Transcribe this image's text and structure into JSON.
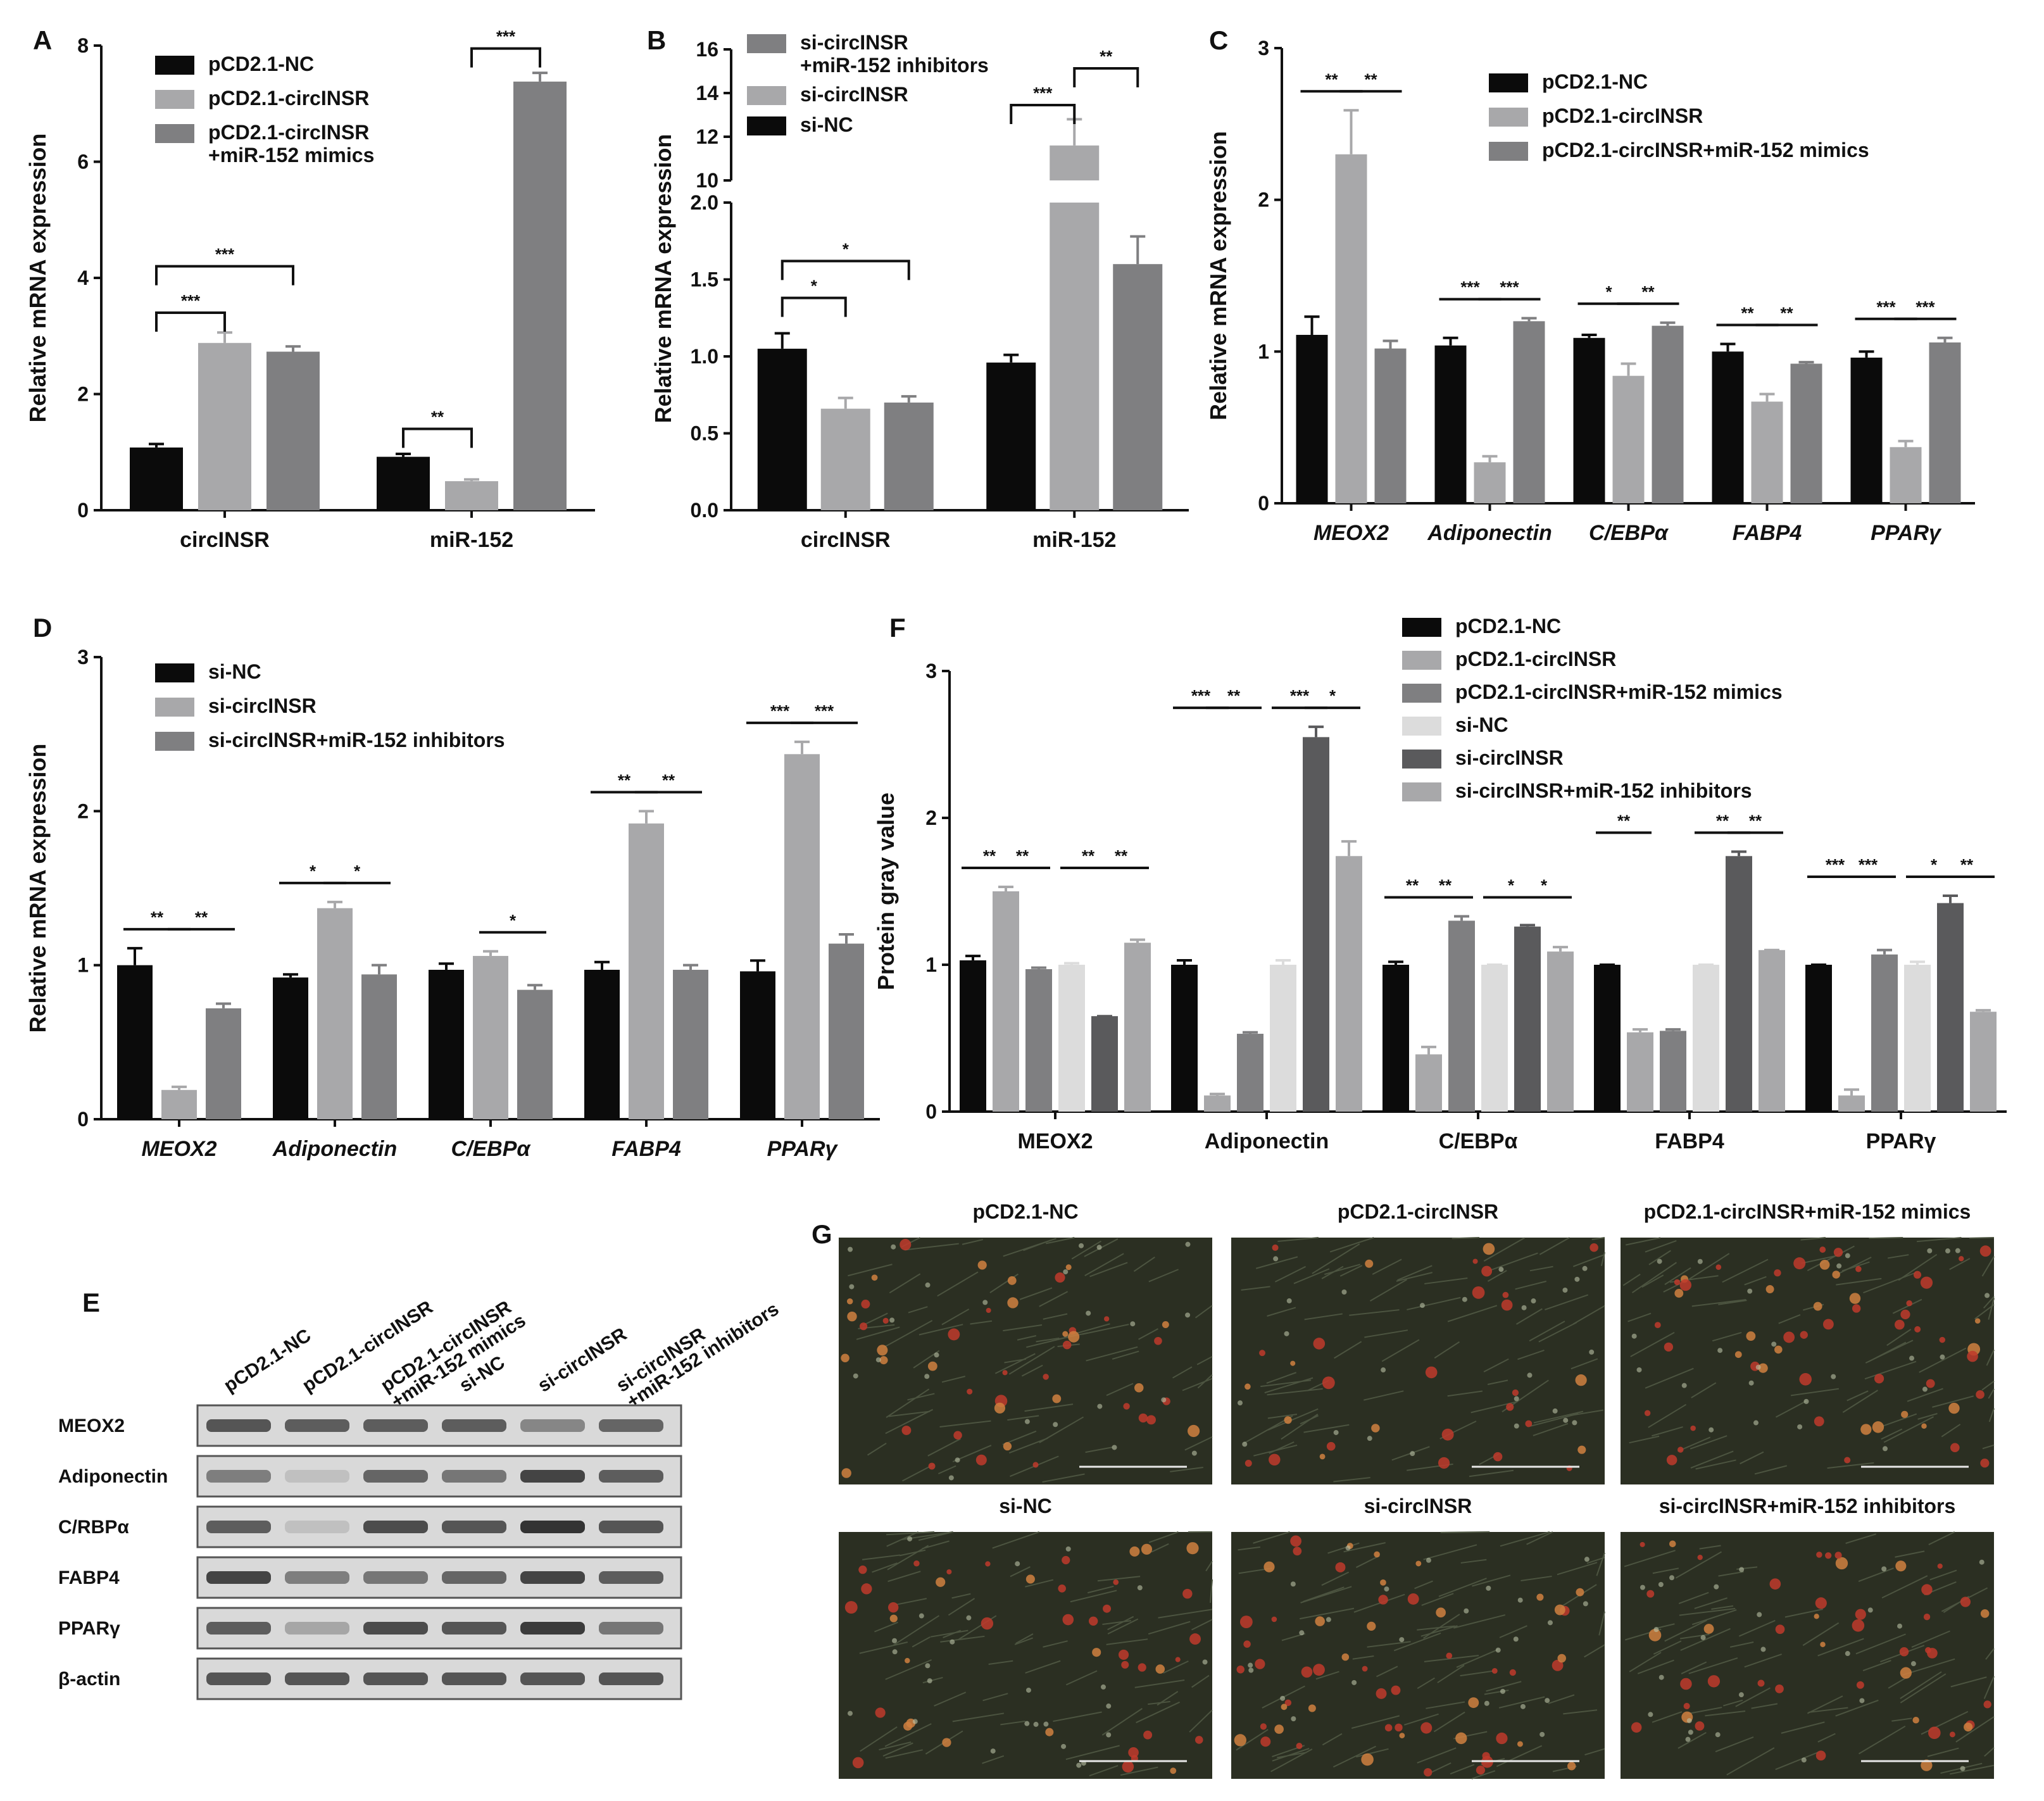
{
  "colors": {
    "black": "#0b0b0b",
    "lightgray": "#a8a8aa",
    "midgray": "#7f7f81",
    "palegray": "#dcdcdc",
    "darkgray": "#5a5a5c",
    "blot_bg": "#d9d9d9",
    "band": "#333333"
  },
  "chart_data": [
    {
      "panel": "A",
      "type": "bar",
      "categories": [
        "circINSR",
        "miR-152"
      ],
      "ylabel": "Relative mRNA expression",
      "ylim": [
        0,
        8
      ],
      "yticks": [
        0,
        2,
        4,
        6,
        8
      ],
      "series": [
        {
          "name": "pCD2.1-NC",
          "values": [
            1.08,
            0.92
          ],
          "errors": [
            0.06,
            0.05
          ]
        },
        {
          "name": "pCD2.1-circINSR",
          "values": [
            2.88,
            0.5
          ],
          "errors": [
            0.18,
            0.03
          ]
        },
        {
          "name": "pCD2.1-circINSR\n+miR-152 mimics",
          "values": [
            2.73,
            7.38
          ],
          "errors": [
            0.09,
            0.15
          ]
        }
      ],
      "significance": [
        {
          "cat": 0,
          "from": 0,
          "to": 1,
          "label": "***"
        },
        {
          "cat": 0,
          "from": 0,
          "to": 2,
          "label": "***"
        },
        {
          "cat": 1,
          "from": 0,
          "to": 1,
          "label": "**"
        },
        {
          "cat": 1,
          "from": 1,
          "to": 2,
          "label": "***"
        }
      ],
      "legend": "top-left"
    },
    {
      "panel": "B",
      "type": "bar",
      "categories": [
        "circINSR",
        "miR-152"
      ],
      "ylabel": "Relative mRNA expression",
      "broken_axis": true,
      "yticks_low": [
        "0.0",
        "0.5",
        "1.0",
        "1.5",
        "2.0"
      ],
      "yticks_high": [
        "10",
        "12",
        "14",
        "16"
      ],
      "series": [
        {
          "name": "si-NC",
          "values": [
            1.05,
            0.96
          ],
          "errors": [
            0.1,
            0.05
          ]
        },
        {
          "name": "si-circINSR",
          "values": [
            0.66,
            11.6
          ],
          "errors": [
            0.07,
            1.2
          ]
        },
        {
          "name": "si-circINSR\n+miR-152 inhibitors",
          "values": [
            0.7,
            1.6
          ],
          "errors": [
            0.04,
            0.18
          ]
        }
      ],
      "significance": [
        {
          "cat": 0,
          "from": 0,
          "to": 1,
          "label": "*"
        },
        {
          "cat": 0,
          "from": 0,
          "to": 2,
          "label": "*"
        },
        {
          "cat": 1,
          "from": 0,
          "to": 1,
          "label": "***"
        },
        {
          "cat": 1,
          "from": 1,
          "to": 2,
          "label": "**"
        }
      ],
      "legend": "top-left"
    },
    {
      "panel": "C",
      "type": "bar",
      "categories": [
        "MEOX2",
        "Adiponectin",
        "C/EBPα",
        "FABP4",
        "PPARγ"
      ],
      "ylabel": "Relative mRNA expression",
      "ylim": [
        0,
        3
      ],
      "yticks": [
        0,
        1,
        2,
        3
      ],
      "series": [
        {
          "name": "pCD2.1-NC",
          "values": [
            1.11,
            1.04,
            1.09,
            1.0,
            0.96
          ],
          "errors": [
            0.12,
            0.05,
            0.02,
            0.05,
            0.04
          ]
        },
        {
          "name": "pCD2.1-circINSR",
          "values": [
            2.3,
            0.27,
            0.84,
            0.67,
            0.37
          ],
          "errors": [
            0.29,
            0.04,
            0.08,
            0.05,
            0.04
          ]
        },
        {
          "name": "pCD2.1-circINSR+miR-152 mimics",
          "values": [
            1.02,
            1.2,
            1.17,
            0.92,
            1.06
          ],
          "errors": [
            0.05,
            0.02,
            0.02,
            0.01,
            0.03
          ]
        }
      ],
      "significance_labels": [
        [
          "**",
          "**"
        ],
        [
          "***",
          "***"
        ],
        [
          "*",
          "**"
        ],
        [
          "**",
          "**"
        ],
        [
          "***",
          "***"
        ]
      ],
      "legend": "top-right"
    },
    {
      "panel": "D",
      "type": "bar",
      "categories": [
        "MEOX2",
        "Adiponectin",
        "C/EBPα",
        "FABP4",
        "PPARγ"
      ],
      "ylabel": "Relative mRNA expression",
      "ylim": [
        0,
        3
      ],
      "yticks": [
        0,
        1,
        2,
        3
      ],
      "series": [
        {
          "name": "si-NC",
          "values": [
            1.0,
            0.92,
            0.97,
            0.97,
            0.96
          ],
          "errors": [
            0.11,
            0.02,
            0.04,
            0.05,
            0.07
          ]
        },
        {
          "name": "si-circINSR",
          "values": [
            0.19,
            1.37,
            1.06,
            1.92,
            2.37
          ],
          "errors": [
            0.02,
            0.04,
            0.03,
            0.08,
            0.08
          ]
        },
        {
          "name": "si-circINSR+miR-152 inhibitors",
          "values": [
            0.72,
            0.94,
            0.84,
            0.97,
            1.14
          ],
          "errors": [
            0.03,
            0.06,
            0.03,
            0.03,
            0.06
          ]
        }
      ],
      "significance_labels": [
        [
          "**",
          "**"
        ],
        [
          "*",
          "*"
        ],
        [
          "",
          "*"
        ],
        [
          "**",
          "**"
        ],
        [
          "***",
          "***"
        ]
      ],
      "legend": "top-left"
    },
    {
      "panel": "F",
      "type": "bar",
      "categories": [
        "MEOX2",
        "Adiponectin",
        "C/EBPα",
        "FABP4",
        "PPARγ"
      ],
      "ylabel": "Protein gray value",
      "ylim": [
        0,
        3
      ],
      "yticks": [
        0,
        1,
        2,
        3
      ],
      "series": [
        {
          "name": "pCD2.1-NC",
          "values": [
            1.03,
            1.0,
            1.0,
            1.0,
            1.0
          ],
          "errors": [
            0.03,
            0.03,
            0.02,
            0.0,
            0.0
          ]
        },
        {
          "name": "pCD2.1-circINSR",
          "values": [
            1.5,
            0.11,
            0.39,
            0.54,
            0.11
          ],
          "errors": [
            0.03,
            0.01,
            0.05,
            0.02,
            0.04
          ]
        },
        {
          "name": "pCD2.1-circINSR+miR-152 mimics",
          "values": [
            0.97,
            0.53,
            1.3,
            0.55,
            1.07
          ],
          "errors": [
            0.01,
            0.01,
            0.03,
            0.01,
            0.03
          ]
        },
        {
          "name": "si-NC",
          "values": [
            1.0,
            1.0,
            1.0,
            1.0,
            1.0
          ],
          "errors": [
            0.01,
            0.03,
            0.0,
            0.0,
            0.02
          ]
        },
        {
          "name": "si-circINSR",
          "values": [
            0.65,
            2.55,
            1.26,
            1.74,
            1.42
          ],
          "errors": [
            0.0,
            0.07,
            0.01,
            0.03,
            0.05
          ]
        },
        {
          "name": "si-circINSR+miR-152 inhibitors",
          "values": [
            1.15,
            1.74,
            1.09,
            1.1,
            0.68
          ],
          "errors": [
            0.02,
            0.1,
            0.03,
            0.0,
            0.01
          ]
        }
      ],
      "significance_labels": [
        [
          "**",
          "**",
          "**",
          "**"
        ],
        [
          "***",
          "**",
          "***",
          "*"
        ],
        [
          "**",
          "**",
          "*",
          "*"
        ],
        [
          "**",
          "",
          "**",
          "**"
        ],
        [
          "***",
          "***",
          "*",
          "**"
        ]
      ],
      "legend": "top-right"
    }
  ],
  "panel_e": {
    "letter": "E",
    "lanes": [
      "pCD2.1-NC",
      "pCD2.1-circINSR",
      "pCD2.1-circINSR\n+miR-152 mimics",
      "si-NC",
      "si-circINSR",
      "si-circINSR\n+miR-152 inhibitors"
    ],
    "rows": [
      "MEOX2",
      "Adiponectin",
      "C/RBPα",
      "FABP4",
      "PPARγ",
      "β-actin"
    ],
    "band_intensity": [
      [
        0.8,
        0.75,
        0.75,
        0.75,
        0.5,
        0.7
      ],
      [
        0.55,
        0.15,
        0.7,
        0.6,
        0.9,
        0.75
      ],
      [
        0.75,
        0.15,
        0.85,
        0.8,
        1.0,
        0.8
      ],
      [
        0.9,
        0.55,
        0.6,
        0.7,
        0.9,
        0.75
      ],
      [
        0.75,
        0.3,
        0.85,
        0.8,
        0.95,
        0.6
      ],
      [
        0.8,
        0.8,
        0.8,
        0.8,
        0.8,
        0.8
      ]
    ]
  },
  "panel_g": {
    "letter": "G",
    "images": [
      {
        "label": "pCD2.1-NC",
        "density": 0.8
      },
      {
        "label": "pCD2.1-circINSR",
        "density": 0.55
      },
      {
        "label": "pCD2.1-circINSR+miR-152 mimics",
        "density": 1.0
      },
      {
        "label": "si-NC",
        "density": 0.75
      },
      {
        "label": "si-circINSR",
        "density": 1.0
      },
      {
        "label": "si-circINSR+miR-152 inhibitors",
        "density": 0.8
      }
    ]
  }
}
